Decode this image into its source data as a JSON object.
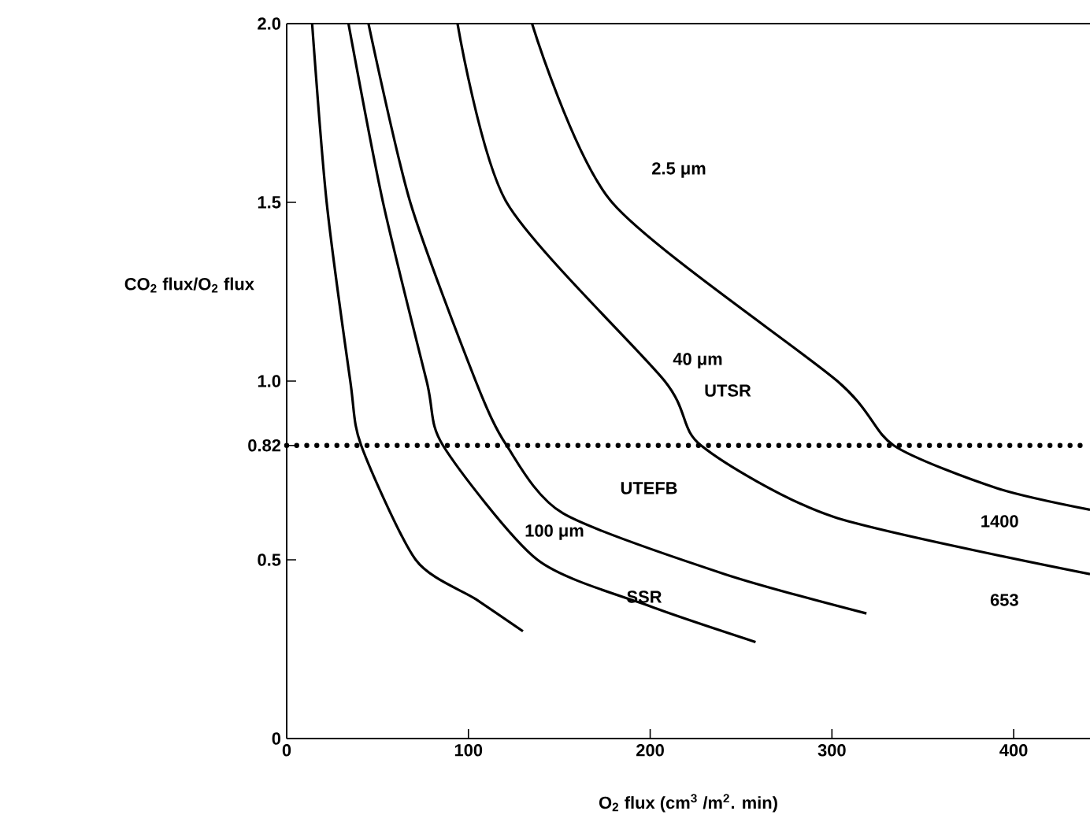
{
  "chart_data": {
    "type": "line",
    "xlabel": "O$_{2}$ flux (cm$^{3}$ /m$^{2}$. min)",
    "ylabel": "CO$_{2}$ flux/O$_{2}$ flux",
    "xlim": [
      0,
      442
    ],
    "ylim": [
      0,
      2
    ],
    "xticks": [
      0,
      100,
      200,
      300,
      400
    ],
    "yticks": [
      0,
      {
        "value": 0.5,
        "label": "0.5"
      },
      0.82,
      {
        "value": 1,
        "label": "1.0"
      },
      {
        "value": 1.5,
        "label": "1.5"
      },
      {
        "value": 2,
        "label": "2.0"
      }
    ],
    "marker": "none",
    "line_style": "solid",
    "grid": false,
    "legend": false,
    "series": [
      {
        "color": "#000000",
        "x": [
          14,
          22,
          35,
          41,
          71,
          104,
          130
        ],
        "values": [
          2,
          1.5,
          1.0,
          0.82,
          0.5,
          0.39,
          0.3
        ]
      },
      {
        "name": "SSR",
        "color": "#000000",
        "x": [
          34,
          53,
          77,
          86,
          138,
          200,
          258
        ],
        "values": [
          2,
          1.5,
          1.0,
          0.82,
          0.5,
          0.37,
          0.27
        ]
      },
      {
        "name": "UTEFB",
        "color": "#000000",
        "x": [
          45,
          68,
          104,
          121,
          152,
          241,
          319
        ],
        "values": [
          2,
          1.5,
          1.0,
          0.82,
          0.63,
          0.46,
          0.35
        ]
      },
      {
        "name": "UTSR",
        "color": "#000000",
        "x": [
          94,
          121,
          208,
          228,
          301,
          442
        ],
        "values": [
          2,
          1.5,
          1.0,
          0.82,
          0.62,
          0.46
        ]
      },
      {
        "color": "#000000",
        "x": [
          135,
          179,
          303,
          334,
          391,
          442
        ],
        "values": [
          2,
          1.5,
          1.0,
          0.82,
          0.7,
          0.64
        ]
      }
    ],
    "ref_lines": [
      {
        "axis": "y",
        "value": 0.82,
        "line_style": "dotted",
        "color": "#000000"
      }
    ],
    "annotations": [
      "2.5 μm",
      "40 μm",
      "100 μm",
      "1400",
      "653"
    ]
  }
}
